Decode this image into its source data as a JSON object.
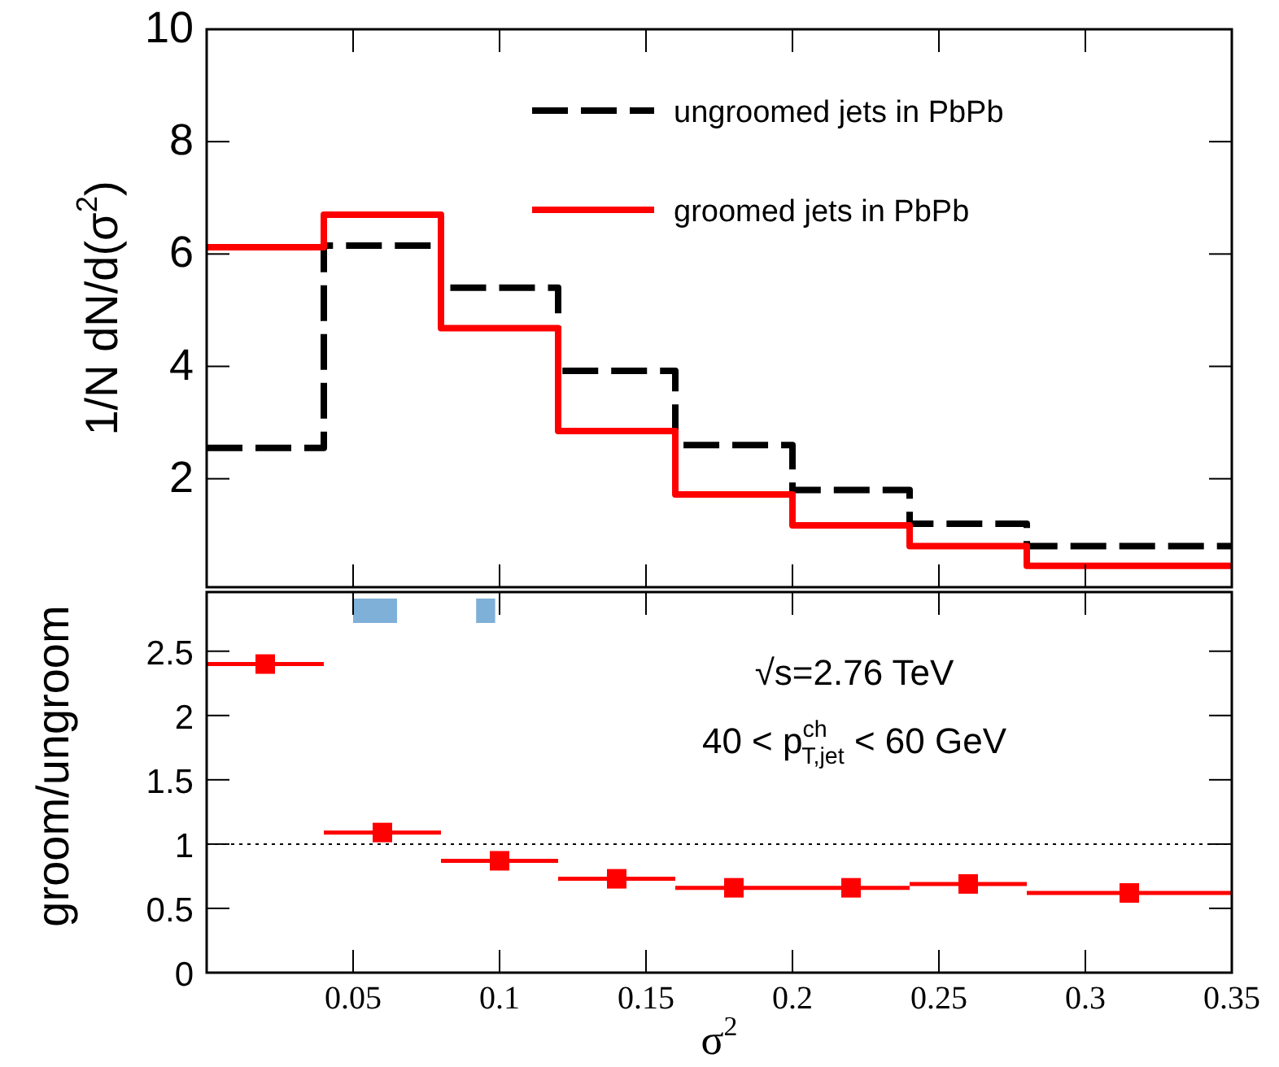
{
  "chart_data": [
    {
      "type": "histogram",
      "ylabel": "1/N dN/d(σ$^{2}$)",
      "bins": [
        0,
        0.04,
        0.08,
        0.12,
        0.16,
        0.2,
        0.24,
        0.28,
        0.35
      ],
      "series": [
        {
          "name": "ungroomed jets in PbPb",
          "color": "#000000",
          "line_style": "dashed",
          "values": [
            2.55,
            6.15,
            5.4,
            3.92,
            2.6,
            1.8,
            1.2,
            0.8
          ]
        },
        {
          "name": "groomed jets in PbPb",
          "color": "#ff0000",
          "line_style": "solid",
          "values": [
            6.12,
            6.7,
            4.68,
            2.85,
            1.72,
            1.17,
            0.8,
            0.45
          ]
        }
      ],
      "xlim": [
        0,
        0.35
      ],
      "xticks": [
        0.05,
        0.1,
        0.15,
        0.2,
        0.25,
        0.3,
        0.35
      ],
      "ylim": [
        0.07,
        10
      ],
      "yticks": [
        2,
        4,
        6,
        8,
        10
      ],
      "tick_labels": "y",
      "legend": "top right"
    },
    {
      "type": "scatter",
      "xlabel": "σ$^{2}$",
      "ylabel": "groom/ungroom",
      "marker": "square",
      "x": [
        0.02,
        0.06,
        0.1,
        0.14,
        0.18,
        0.22,
        0.26,
        0.315
      ],
      "series": [
        {
          "color": "#ff0000",
          "values": [
            2.4,
            1.09,
            0.87,
            0.73,
            0.66,
            0.66,
            0.69,
            0.62
          ],
          "xerrors": [
            0.02,
            0.02,
            0.02,
            0.02,
            0.02,
            0.02,
            0.02,
            0.035
          ]
        }
      ],
      "xlim": [
        0,
        0.35
      ],
      "xticks": [
        0.05,
        0.1,
        0.15,
        0.2,
        0.25,
        0.3,
        0.35
      ],
      "ylim": [
        0,
        2.96
      ],
      "yticks": [
        0,
        0.5,
        1,
        1.5,
        2,
        2.5
      ],
      "ref_lines": [
        {
          "axis": "y",
          "value": 1,
          "line_style": "dotted",
          "color": "#000000"
        }
      ],
      "annotations": [
        "√s=2.76 TeV",
        "40 < p$^{ch}$$_{T,jet}$ < 60 GeV"
      ]
    }
  ]
}
